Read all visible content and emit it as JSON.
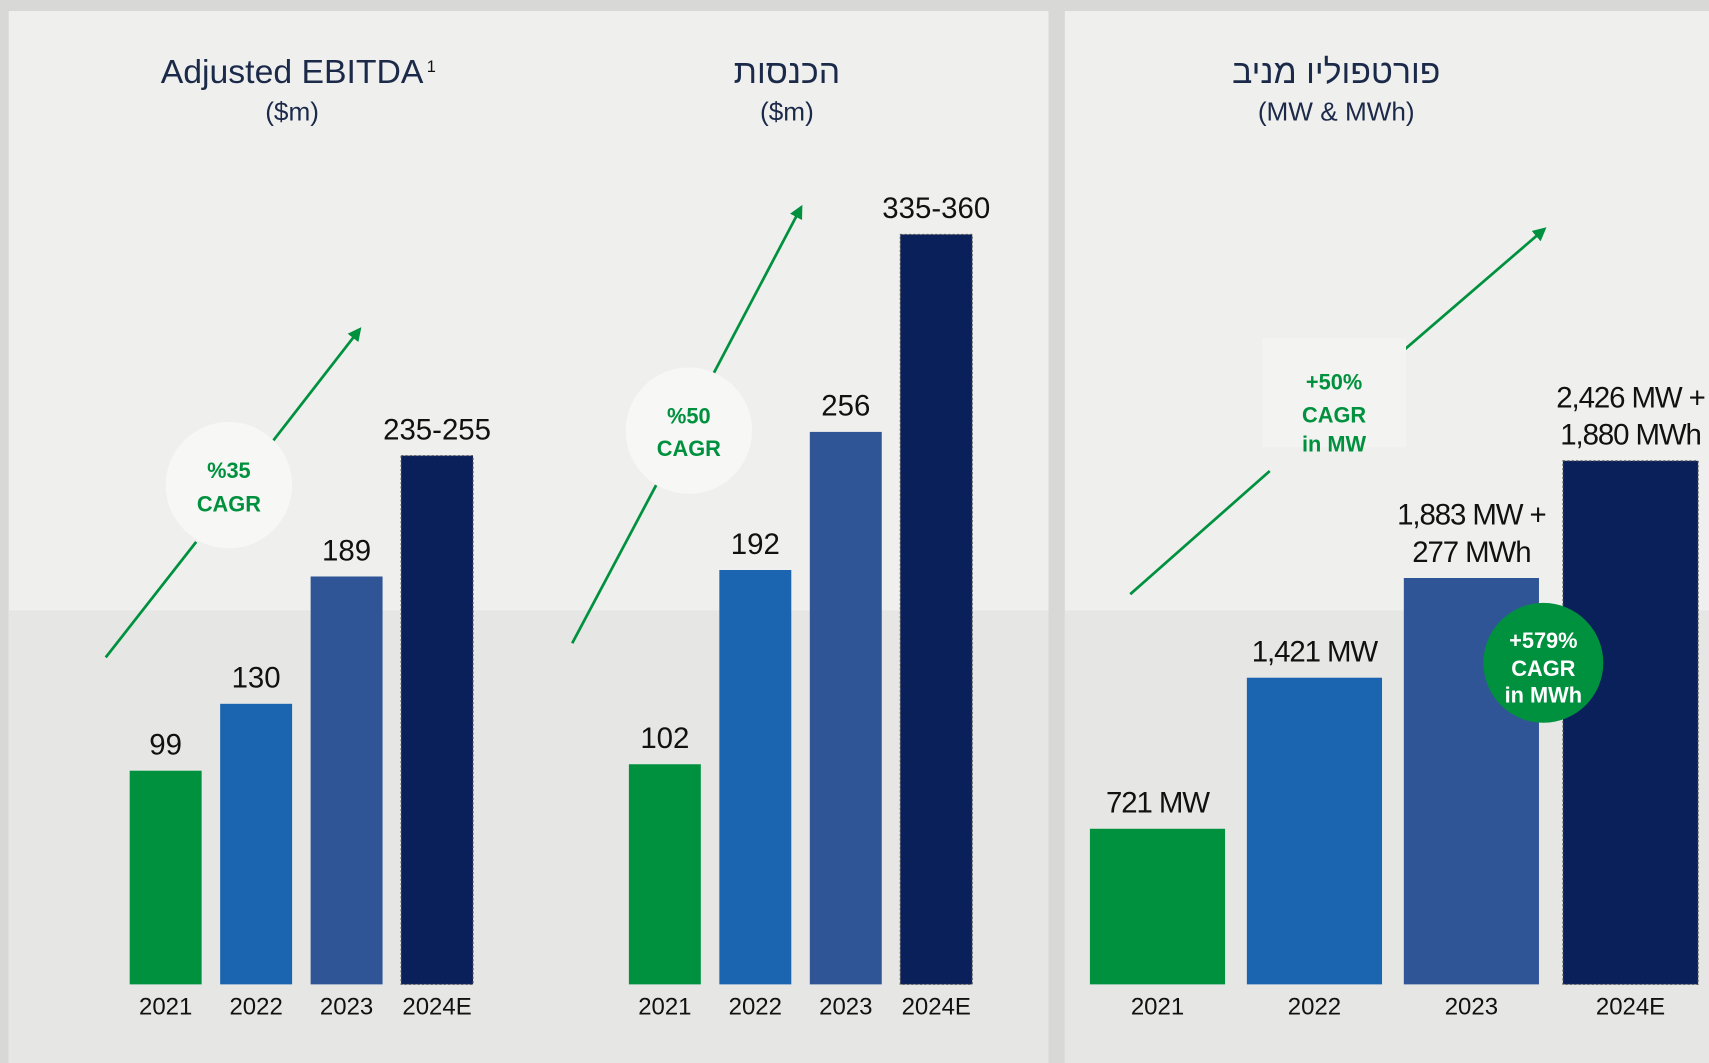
{
  "chart_data": [
    {
      "type": "bar",
      "title": "Adjusted EBITDA",
      "title_footnote": "1",
      "subtitle": "($m)",
      "categories": [
        "2021",
        "2022",
        "2023",
        "2024E"
      ],
      "values": [
        99,
        130,
        189,
        245
      ],
      "value_labels": [
        "99",
        "130",
        "189",
        "235-255"
      ],
      "colors": [
        "#00913f",
        "#1a64b0",
        "#2f5597",
        "#0a205a"
      ],
      "ylim": [
        0,
        300
      ],
      "annotations": [
        {
          "lines": [
            "%35",
            "CAGR"
          ]
        }
      ]
    },
    {
      "type": "bar",
      "title": "הכנסות",
      "subtitle": "($m)",
      "categories": [
        "2021",
        "2022",
        "2023",
        "2024E"
      ],
      "values": [
        102,
        192,
        256,
        347.5
      ],
      "value_labels": [
        "102",
        "192",
        "256",
        "335-360"
      ],
      "colors": [
        "#00913f",
        "#1a64b0",
        "#2f5597",
        "#0a205a"
      ],
      "ylim": [
        0,
        400
      ],
      "annotations": [
        {
          "lines": [
            "%50",
            "CAGR"
          ]
        }
      ]
    },
    {
      "type": "bar",
      "title": "פורטפוליו מניב",
      "subtitle": "(MW & MWh)",
      "categories": [
        "2021",
        "2022",
        "2023",
        "2024E"
      ],
      "values": [
        721,
        1421,
        1883,
        2426
      ],
      "value_labels": [
        "721 MW",
        "1,421 MW",
        "1,883 MW +",
        "2,426 MW +"
      ],
      "mwh_values": [
        null,
        null,
        277,
        1880
      ],
      "mwh_value_labels": [
        null,
        null,
        "277 MWh",
        "1,880 MWh"
      ],
      "colors": [
        "#00913f",
        "#1a64b0",
        "#2f5597",
        "#0a205a"
      ],
      "ylim": [
        0,
        3000
      ],
      "annotations": [
        {
          "lines": [
            "+50%",
            "CAGR",
            "in MW"
          ]
        },
        {
          "lines": [
            "+579%",
            "CAGR",
            "in MWh"
          ]
        }
      ]
    }
  ]
}
